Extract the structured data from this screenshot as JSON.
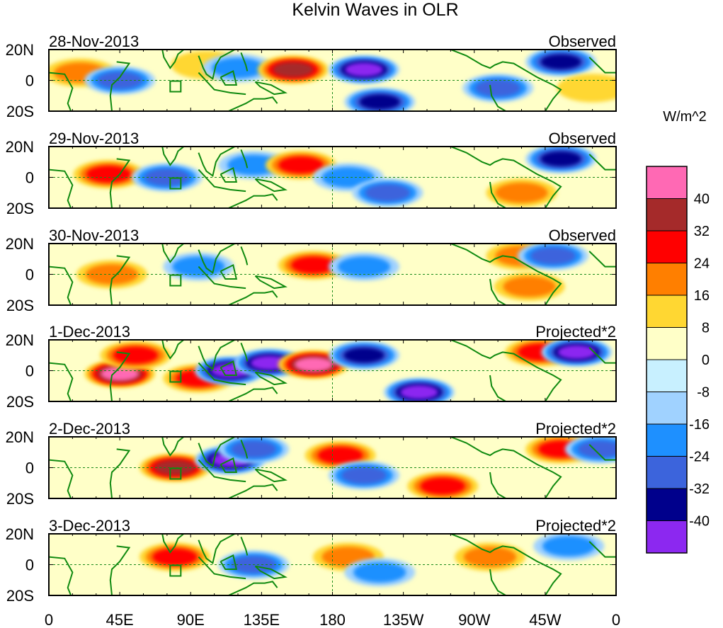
{
  "chart_data": {
    "type": "heatmap",
    "title": "Kelvin Waves in OLR",
    "colorbar": {
      "unit_label": "W/m^2",
      "tick_labels": [
        "40",
        "32",
        "24",
        "16",
        "8",
        "0",
        "-8",
        "-16",
        "-24",
        "-32",
        "-40"
      ],
      "colors": [
        "#ff69b4",
        "#a52a2a",
        "#ff0000",
        "#ff7f00",
        "#ffd732",
        "#ffffc8",
        "#c8f0ff",
        "#a0d2ff",
        "#1e90ff",
        "#3c64dc",
        "#00008c",
        "#8c28f0"
      ]
    },
    "longitude_ticks": [
      "0",
      "45E",
      "90E",
      "135E",
      "180",
      "135W",
      "90W",
      "45W",
      "0"
    ],
    "latitude_ticks": [
      "20N",
      "0",
      "20S"
    ],
    "ylim": [
      -20,
      20
    ],
    "xlim": [
      0,
      360
    ],
    "panels": [
      {
        "date": "28-Nov-2013",
        "type": "Observed",
        "anomalies": [
          {
            "lon": 20,
            "lat": 5,
            "value": 16
          },
          {
            "lon": 45,
            "lat": 0,
            "value": -24
          },
          {
            "lon": 100,
            "lat": 10,
            "value": 8
          },
          {
            "lon": 120,
            "lat": 8,
            "value": -16
          },
          {
            "lon": 155,
            "lat": 7,
            "value": 32
          },
          {
            "lon": 200,
            "lat": 7,
            "value": -40
          },
          {
            "lon": 210,
            "lat": -14,
            "value": -32
          },
          {
            "lon": 285,
            "lat": -5,
            "value": -24
          },
          {
            "lon": 325,
            "lat": 12,
            "value": -32
          },
          {
            "lon": 345,
            "lat": -5,
            "value": 8
          }
        ]
      },
      {
        "date": "29-Nov-2013",
        "type": "Observed",
        "anomalies": [
          {
            "lon": 38,
            "lat": 2,
            "value": 24
          },
          {
            "lon": 75,
            "lat": 0,
            "value": -24
          },
          {
            "lon": 130,
            "lat": 8,
            "value": -16
          },
          {
            "lon": 160,
            "lat": 8,
            "value": 24
          },
          {
            "lon": 190,
            "lat": 0,
            "value": -16
          },
          {
            "lon": 215,
            "lat": -10,
            "value": -24
          },
          {
            "lon": 300,
            "lat": -10,
            "value": 16
          },
          {
            "lon": 325,
            "lat": 12,
            "value": -32
          }
        ]
      },
      {
        "date": "30-Nov-2013",
        "type": "Observed",
        "anomalies": [
          {
            "lon": 40,
            "lat": 0,
            "value": 16
          },
          {
            "lon": 95,
            "lat": 5,
            "value": -16
          },
          {
            "lon": 168,
            "lat": 6,
            "value": 24
          },
          {
            "lon": 200,
            "lat": 5,
            "value": -16
          },
          {
            "lon": 300,
            "lat": 12,
            "value": 16
          },
          {
            "lon": 320,
            "lat": 12,
            "value": -24
          },
          {
            "lon": 305,
            "lat": -8,
            "value": 16
          }
        ]
      },
      {
        "date": "1-Dec-2013",
        "type": "Projected*2",
        "anomalies": [
          {
            "lon": 45,
            "lat": -2,
            "value": 40
          },
          {
            "lon": 55,
            "lat": 10,
            "value": 24
          },
          {
            "lon": 95,
            "lat": -5,
            "value": 24
          },
          {
            "lon": 115,
            "lat": 0,
            "value": -40
          },
          {
            "lon": 140,
            "lat": 5,
            "value": -40
          },
          {
            "lon": 168,
            "lat": 4,
            "value": 40
          },
          {
            "lon": 200,
            "lat": 10,
            "value": -32
          },
          {
            "lon": 235,
            "lat": -14,
            "value": -40
          },
          {
            "lon": 312,
            "lat": 12,
            "value": 24
          },
          {
            "lon": 335,
            "lat": 12,
            "value": -40
          }
        ]
      },
      {
        "date": "2-Dec-2013",
        "type": "Projected*2",
        "anomalies": [
          {
            "lon": 80,
            "lat": 0,
            "value": 32
          },
          {
            "lon": 115,
            "lat": 5,
            "value": -40
          },
          {
            "lon": 130,
            "lat": 12,
            "value": -24
          },
          {
            "lon": 185,
            "lat": 8,
            "value": 24
          },
          {
            "lon": 200,
            "lat": -5,
            "value": -24
          },
          {
            "lon": 250,
            "lat": -12,
            "value": 24
          },
          {
            "lon": 325,
            "lat": 12,
            "value": 24
          },
          {
            "lon": 350,
            "lat": 12,
            "value": -24
          }
        ]
      },
      {
        "date": "3-Dec-2013",
        "type": "Projected*2",
        "anomalies": [
          {
            "lon": 80,
            "lat": 5,
            "value": 24
          },
          {
            "lon": 130,
            "lat": 0,
            "value": -24
          },
          {
            "lon": 190,
            "lat": 5,
            "value": 16
          },
          {
            "lon": 210,
            "lat": -5,
            "value": -16
          },
          {
            "lon": 280,
            "lat": 5,
            "value": 16
          },
          {
            "lon": 330,
            "lat": 12,
            "value": -16
          }
        ]
      }
    ]
  }
}
